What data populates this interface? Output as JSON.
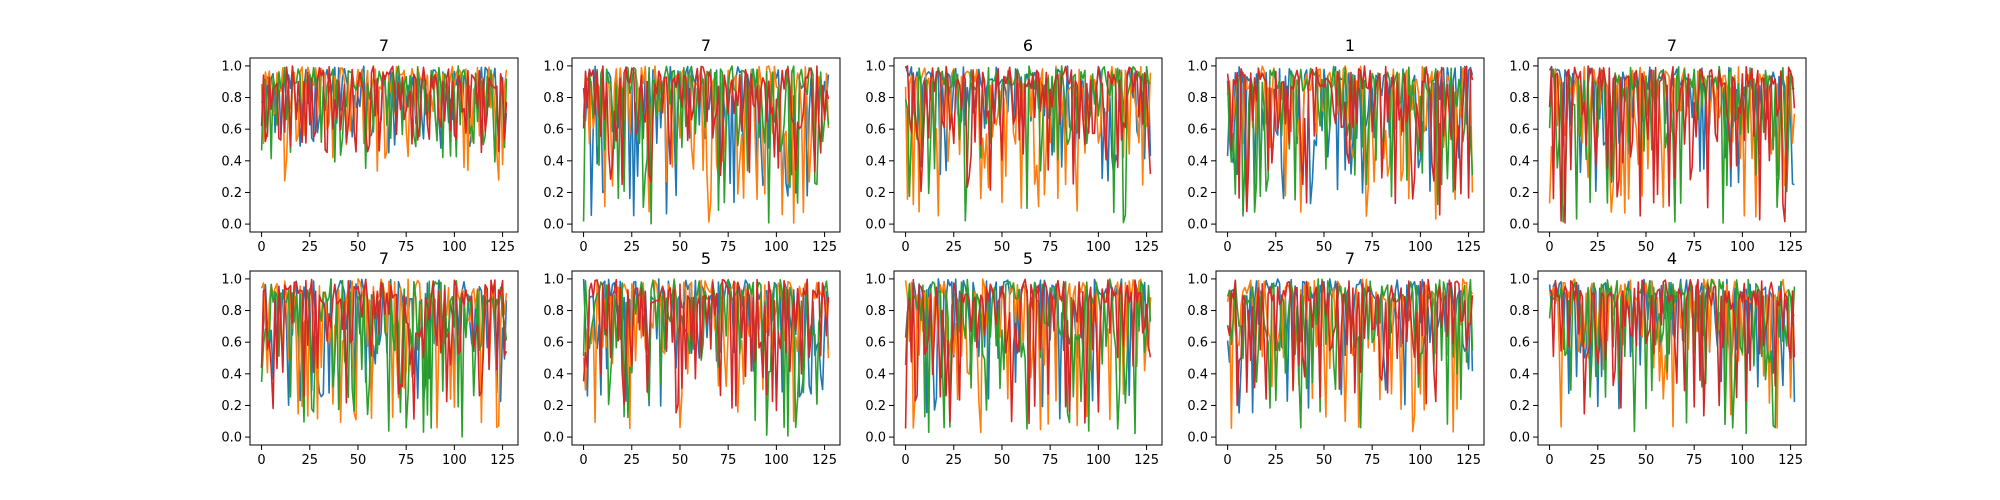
{
  "chart_data": {
    "type": "line",
    "grid": false,
    "legend": "none",
    "xlim": [
      -6,
      133
    ],
    "ylim": [
      -0.05,
      1.05
    ],
    "xticks": [
      0,
      25,
      50,
      75,
      100,
      125
    ],
    "xtick_labels": [
      "0",
      "25",
      "50",
      "75",
      "100",
      "125"
    ],
    "yticks": [
      0.0,
      0.2,
      0.4,
      0.6,
      0.8,
      1.0
    ],
    "ytick_labels": [
      "0.0",
      "0.2",
      "0.4",
      "0.6",
      "0.8",
      "1.0"
    ],
    "n_points": 128,
    "series_colors": [
      "#1f77b4",
      "#ff7f0e",
      "#2ca02c",
      "#d62728"
    ],
    "panels": [
      {
        "title": "7",
        "seed": 11,
        "floors": [
          0.45,
          0.2,
          0.35,
          0.45
        ]
      },
      {
        "title": "7",
        "seed": 23,
        "floors": [
          0.05,
          0.0,
          0.0,
          0.25
        ]
      },
      {
        "title": "6",
        "seed": 37,
        "floors": [
          0.25,
          0.05,
          0.0,
          0.2
        ]
      },
      {
        "title": "1",
        "seed": 41,
        "floors": [
          0.1,
          0.0,
          0.0,
          0.05
        ]
      },
      {
        "title": "7",
        "seed": 53,
        "floors": [
          0.15,
          0.0,
          0.0,
          0.0
        ]
      },
      {
        "title": "7",
        "seed": 67,
        "floors": [
          0.2,
          0.05,
          0.0,
          0.1
        ]
      },
      {
        "title": "5",
        "seed": 79,
        "floors": [
          0.1,
          0.05,
          0.0,
          0.15
        ]
      },
      {
        "title": "5",
        "seed": 83,
        "floors": [
          0.1,
          0.0,
          0.0,
          0.05
        ]
      },
      {
        "title": "7",
        "seed": 97,
        "floors": [
          0.15,
          0.0,
          0.05,
          0.2
        ]
      },
      {
        "title": "4",
        "seed": 101,
        "floors": [
          0.1,
          0.05,
          0.0,
          0.1
        ]
      }
    ]
  }
}
